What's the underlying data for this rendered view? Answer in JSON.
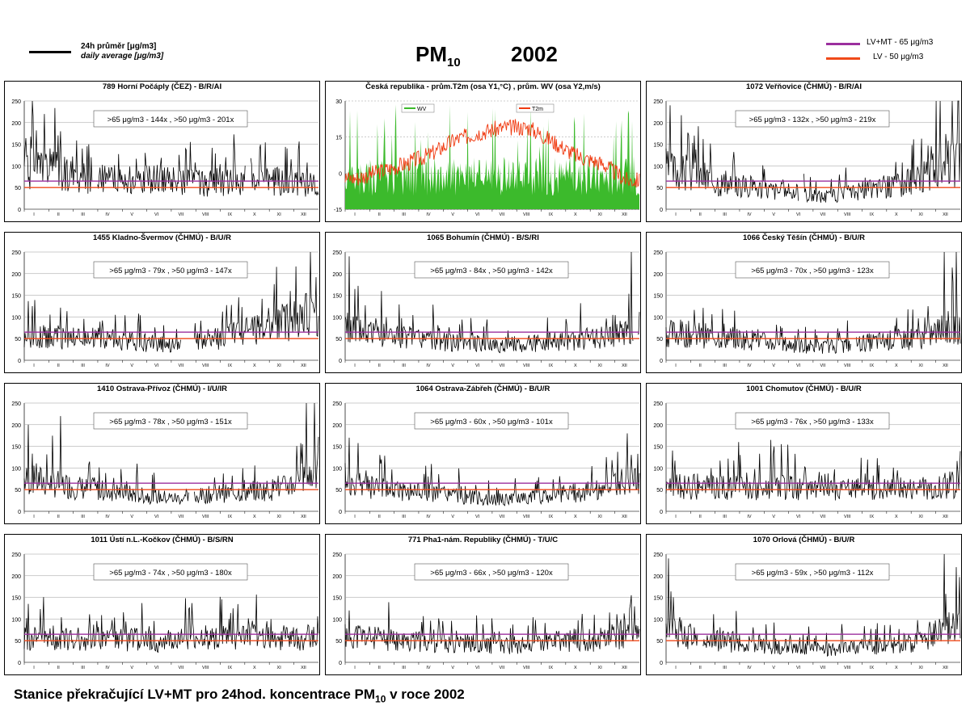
{
  "header": {
    "legend_daily_line1": "24h průměr [μg/m3]",
    "legend_daily_line2": "daily average [μg/m3]",
    "title_main": "PM",
    "title_sub": "10",
    "title_year": "2002",
    "legend_lvmt": "LV+MT - 65 μg/m3",
    "legend_lv": "LV    - 50 μg/m3"
  },
  "caption": {
    "text": "Stanice překračující LV+MT pro 24hod. koncentrace PM",
    "sub": "10",
    "tail": " v roce 2002"
  },
  "colors": {
    "lvmt": "#9b2f9e",
    "lv": "#f04a1a",
    "wv": "#3cba2c",
    "t2m": "#f03a10",
    "series": "#000000"
  },
  "months": [
    "I",
    "II",
    "III",
    "IV",
    "V",
    "VI",
    "VII",
    "VIII",
    "IX",
    "X",
    "XI",
    "XII"
  ],
  "chart_data": [
    {
      "type": "line",
      "title": "789 Horní Počáply (ČEZ) - B/R/AI",
      "note": ">65 μg/m3 - 144x , >50 μg/m3 - 201x",
      "ylim": [
        0,
        250
      ],
      "yticks": [
        0,
        50,
        100,
        150,
        200,
        250
      ],
      "lvmt": 65,
      "lv": 50,
      "profile": [
        100,
        95,
        75,
        70,
        72,
        70,
        68,
        60,
        66,
        70,
        65,
        62
      ],
      "spikes": [
        [
          10,
          250
        ],
        [
          25,
          220
        ],
        [
          45,
          180
        ],
        [
          80,
          150
        ],
        [
          150,
          130
        ],
        [
          200,
          140
        ],
        [
          250,
          120
        ]
      ],
      "gaps": [
        [
          85,
          90
        ],
        [
          275,
          280
        ]
      ],
      "seed": 1
    },
    {
      "type": "line",
      "title": "Česká republika - prům.T2m (osa Y1,°C) , prům. WV (osa Y2,m/s)",
      "legend_wv": "WV",
      "legend_t2m": "T2m",
      "y1lim": [
        -15,
        30
      ],
      "y1ticks": [
        -15,
        0,
        15,
        30
      ],
      "y2lim": [
        0,
        6
      ],
      "y2ticks": [
        0,
        1,
        2,
        3,
        4,
        5,
        6
      ],
      "t2m_monthly": [
        -2,
        1,
        4,
        8,
        14,
        17,
        19,
        19,
        13,
        7,
        4,
        -3
      ],
      "wv_mean": 1.4,
      "seed": 2
    },
    {
      "type": "line",
      "title": "1072 Veřňovice (ČHMÚ) - B/R/AI",
      "note": ">65 μg/m3 - 132x , >50 μg/m3 - 219x",
      "ylim": [
        0,
        250
      ],
      "yticks": [
        0,
        50,
        100,
        150,
        200,
        250
      ],
      "lvmt": 65,
      "lv": 50,
      "profile": [
        95,
        80,
        60,
        55,
        45,
        38,
        30,
        40,
        50,
        60,
        80,
        110
      ],
      "spikes": [
        [
          5,
          240
        ],
        [
          35,
          170
        ],
        [
          335,
          250
        ],
        [
          355,
          250
        ],
        [
          362,
          250
        ]
      ],
      "gaps": [
        [
          165,
          170
        ]
      ],
      "seed": 3
    },
    {
      "type": "line",
      "title": "1455 Kladno-Švermov (ČHMÚ) - B/U/R",
      "note": ">65 μg/m3 - 79x , >50 μg/m3 - 147x",
      "ylim": [
        0,
        250
      ],
      "yticks": [
        0,
        50,
        100,
        150,
        200,
        250
      ],
      "lvmt": 65,
      "lv": 50,
      "profile": [
        60,
        55,
        55,
        50,
        45,
        40,
        35,
        50,
        60,
        80,
        90,
        110
      ],
      "spikes": [
        [
          10,
          125
        ],
        [
          330,
          160
        ],
        [
          355,
          250
        ]
      ],
      "gaps": [
        [
          195,
          210
        ]
      ],
      "seed": 4
    },
    {
      "type": "line",
      "title": "1065 Bohumín (ČHMÚ) - B/S/RI",
      "note": ">65 μg/m3 - 84x , >50 μg/m3 - 142x",
      "ylim": [
        0,
        250
      ],
      "yticks": [
        0,
        50,
        100,
        150,
        200,
        250
      ],
      "lvmt": 65,
      "lv": 50,
      "profile": [
        75,
        65,
        55,
        50,
        42,
        40,
        38,
        40,
        45,
        50,
        55,
        70
      ],
      "spikes": [
        [
          5,
          240
        ],
        [
          45,
          160
        ],
        [
          355,
          250
        ]
      ],
      "gaps": [
        [
          358,
          362
        ]
      ],
      "seed": 5
    },
    {
      "type": "line",
      "title": "1066 Český Těšín (ČHMÚ) - B/U/R",
      "note": ">65 μg/m3 - 70x , >50 μg/m3 - 123x",
      "ylim": [
        0,
        250
      ],
      "yticks": [
        0,
        50,
        100,
        150,
        200,
        250
      ],
      "lvmt": 65,
      "lv": 50,
      "profile": [
        65,
        60,
        55,
        50,
        40,
        35,
        32,
        38,
        45,
        50,
        55,
        80
      ],
      "spikes": [
        [
          345,
          250
        ],
        [
          360,
          250
        ]
      ],
      "gaps": [
        [
          230,
          235
        ]
      ],
      "seed": 6
    },
    {
      "type": "line",
      "title": "1410 Ostrava-Přívoz (ČHMÚ) - I/U/IR",
      "note": ">65 μg/m3 - 78x , >50 μg/m3 - 151x",
      "ylim": [
        0,
        250
      ],
      "yticks": [
        0,
        50,
        100,
        150,
        200,
        250
      ],
      "lvmt": 65,
      "lv": 50,
      "profile": [
        75,
        65,
        55,
        50,
        40,
        35,
        30,
        40,
        45,
        50,
        55,
        85
      ],
      "spikes": [
        [
          5,
          200
        ],
        [
          45,
          220
        ],
        [
          140,
          110
        ],
        [
          350,
          250
        ],
        [
          360,
          250
        ]
      ],
      "gaps": [
        [
          205,
          210
        ]
      ],
      "seed": 7
    },
    {
      "type": "line",
      "title": "1064 Ostrava-Zábřeh (ČHMÚ) - B/U/R",
      "note": ">65 μg/m3 - 60x , >50 μg/m3 - 101x",
      "ylim": [
        0,
        250
      ],
      "yticks": [
        0,
        50,
        100,
        150,
        200,
        250
      ],
      "lvmt": 65,
      "lv": 50,
      "profile": [
        65,
        55,
        50,
        45,
        38,
        32,
        28,
        35,
        40,
        45,
        55,
        75
      ],
      "spikes": [
        [
          5,
          170
        ],
        [
          45,
          120
        ],
        [
          350,
          180
        ]
      ],
      "gaps": [],
      "seed": 8
    },
    {
      "type": "line",
      "title": "1001 Chomutov (ČHMÚ) - B/U/R",
      "note": ">65 μg/m3 - 76x , >50 μg/m3 - 133x",
      "ylim": [
        0,
        250
      ],
      "yticks": [
        0,
        50,
        100,
        150,
        200,
        250
      ],
      "lvmt": 65,
      "lv": 50,
      "profile": [
        60,
        58,
        58,
        55,
        60,
        55,
        50,
        55,
        55,
        55,
        55,
        65
      ],
      "spikes": [
        [
          90,
          160
        ],
        [
          130,
          165
        ]
      ],
      "gaps": [],
      "seed": 9
    },
    {
      "type": "line",
      "title": "1011 Ústí n.L.-Kočkov (ČHMÚ) - B/S/RN",
      "note": ">65 μg/m3 - 74x , >50 μg/m3 - 180x",
      "ylim": [
        0,
        250
      ],
      "yticks": [
        0,
        50,
        100,
        150,
        200,
        250
      ],
      "lvmt": 65,
      "lv": 50,
      "profile": [
        60,
        60,
        55,
        55,
        55,
        50,
        55,
        60,
        60,
        60,
        55,
        60
      ],
      "spikes": [
        [
          5,
          135
        ]
      ],
      "gaps": [],
      "seed": 10
    },
    {
      "type": "line",
      "title": "771 Pha1-nám. Republiky (ČHMÚ) - T/U/C",
      "note": ">65 μg/m3 - 66x , >50 μg/m3 - 120x",
      "ylim": [
        0,
        250
      ],
      "yticks": [
        0,
        50,
        100,
        150,
        200,
        250
      ],
      "lvmt": 65,
      "lv": 50,
      "profile": [
        65,
        55,
        50,
        50,
        48,
        45,
        40,
        45,
        50,
        55,
        55,
        70
      ],
      "spikes": [
        [
          5,
          120
        ],
        [
          355,
          155
        ]
      ],
      "gaps": [],
      "seed": 11
    },
    {
      "type": "line",
      "title": "1070 Orlová (ČHMÚ) - B/U/R",
      "note": ">65 μg/m3 - 59x , >50 μg/m3 - 112x",
      "ylim": [
        0,
        250
      ],
      "yticks": [
        0,
        50,
        100,
        150,
        200,
        250
      ],
      "lvmt": 65,
      "lv": 50,
      "profile": [
        75,
        55,
        50,
        45,
        38,
        35,
        30,
        35,
        40,
        45,
        50,
        80
      ],
      "spikes": [
        [
          3,
          240
        ],
        [
          345,
          250
        ],
        [
          360,
          220
        ]
      ],
      "gaps": [
        [
          40,
          45
        ]
      ],
      "seed": 12
    }
  ]
}
